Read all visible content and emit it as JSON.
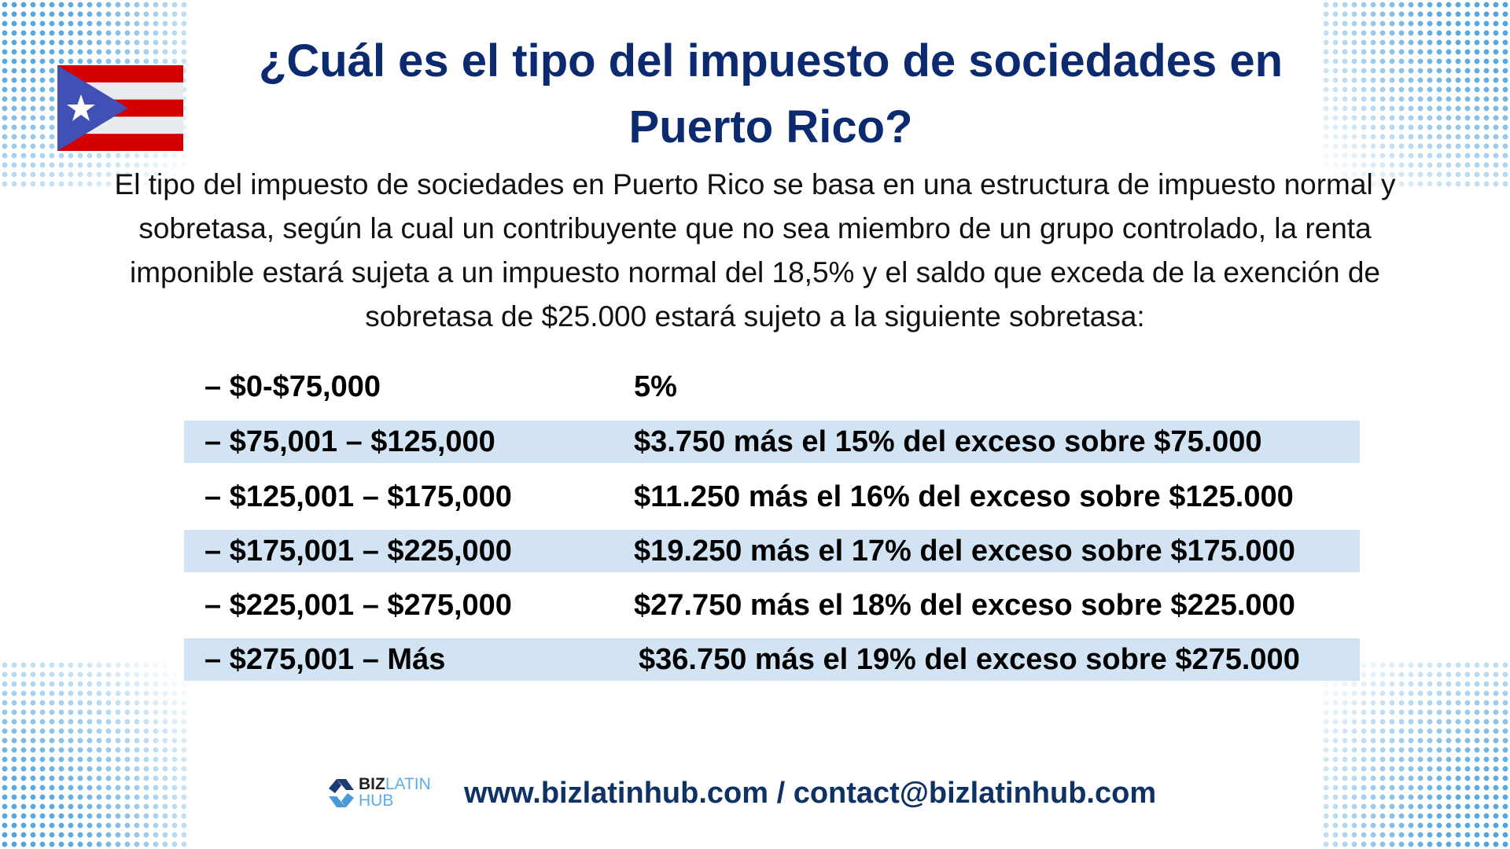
{
  "title": "¿Cuál es el tipo del impuesto de sociedades en Puerto Rico?",
  "intro": "El tipo del impuesto de sociedades en Puerto Rico se basa en una estructura de impuesto normal y sobretasa, según la cual un contribuyente que no sea miembro de un grupo controlado, la renta imponible estará sujeta a un impuesto normal del 18,5% y el saldo que exceda de la exención de sobretasa de $25.000 estará sujeto a la siguiente sobretasa:",
  "rates": [
    {
      "range": "– $0-$75,000",
      "rate": "5%"
    },
    {
      "range": "– $75,001 – $125,000",
      "rate": "$3.750 más el 15% del exceso sobre $75.000"
    },
    {
      "range": "– $125,001 – $175,000",
      "rate": "$11.250 más el 16% del exceso sobre $125.000"
    },
    {
      "range": "– $175,001 – $225,000",
      "rate": "$19.250 más el 17% del exceso sobre $175.000"
    },
    {
      "range": "– $225,001 – $275,000",
      "rate": "$27.750 más el 18% del exceso sobre $225.000"
    },
    {
      "range": "– $275,001 – Más",
      "rate": "$36.750 más el 19% del exceso sobre $275.000"
    }
  ],
  "logo": {
    "line1a": "BIZ",
    "line1b": "LATIN",
    "line2": "HUB"
  },
  "footer": "www.bizlatinhub.com / contact@bizlatinhub.com",
  "colors": {
    "title": "#0b2a6f",
    "highlight": "#d2e4f4",
    "footer": "#0d3263"
  }
}
